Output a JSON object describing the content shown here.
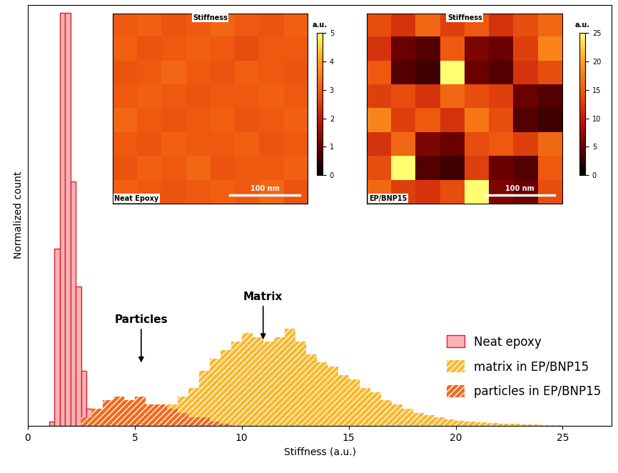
{
  "chart_data": [
    {
      "type": "histogram",
      "xlabel": "Stiffness (a.u.)",
      "ylabel": "Normalized count",
      "xlim": [
        0,
        27.3
      ],
      "xticks": [
        0,
        5,
        10,
        15,
        20,
        25
      ],
      "ylim": [
        0,
        1
      ],
      "yticks": [],
      "tick_labels": "x",
      "legend": "lower right",
      "series": [
        {
          "name": "Neat epoxy",
          "color": "#f7b3b6",
          "bins": [
            1.0,
            1.25,
            1.5,
            1.75,
            2.0,
            2.25,
            2.5,
            2.75,
            3.0
          ],
          "values": [
            0.01,
            0.42,
            0.98,
            0.98,
            0.58,
            0.33,
            0.13,
            0.04
          ]
        },
        {
          "name": "matrix in EP/BNP15",
          "color": "#fbb829",
          "bins": [
            5.0,
            5.5,
            6.0,
            6.5,
            7.0,
            7.5,
            8.0,
            8.5,
            9.0,
            9.5,
            10.0,
            10.5,
            11.0,
            11.5,
            12.0,
            12.5,
            13.0,
            13.5,
            14.0,
            14.5,
            15.0,
            15.5,
            16.0,
            16.5,
            17.0,
            17.5,
            18.0,
            18.5,
            19.0,
            19.5,
            20.0,
            20.5,
            21.0,
            21.5,
            22.0,
            22.5,
            23.0,
            23.5,
            24.0,
            24.5,
            25.0
          ],
          "values": [
            0.01,
            0.02,
            0.03,
            0.05,
            0.07,
            0.09,
            0.13,
            0.16,
            0.18,
            0.2,
            0.22,
            0.21,
            0.2,
            0.21,
            0.23,
            0.2,
            0.17,
            0.15,
            0.14,
            0.12,
            0.11,
            0.09,
            0.08,
            0.06,
            0.05,
            0.04,
            0.03,
            0.025,
            0.02,
            0.015,
            0.012,
            0.01,
            0.008,
            0.006,
            0.005,
            0.004,
            0.003,
            0.003,
            0.002,
            0.002
          ]
        },
        {
          "name": "particles in EP/BNP15",
          "color": "#f46a1e",
          "bins": [
            2.5,
            3.0,
            3.5,
            4.0,
            4.5,
            5.0,
            5.5,
            6.0,
            6.5,
            7.0,
            7.5,
            8.0,
            8.5,
            9.0,
            9.5
          ],
          "values": [
            0.02,
            0.04,
            0.06,
            0.07,
            0.06,
            0.07,
            0.05,
            0.05,
            0.04,
            0.03,
            0.02,
            0.02,
            0.01,
            0.005
          ]
        }
      ],
      "annotations": [
        {
          "text": "Particles",
          "x": 5.3,
          "y": 0.145
        },
        {
          "text": "Matrix",
          "x": 11,
          "y": 0.2
        }
      ]
    },
    {
      "type": "heatmap",
      "title": "Stiffness",
      "label": "Neat Epoxy",
      "scale_bar": "100 nm",
      "colorbar_label": "a.u.",
      "tick_labels": false,
      "colorbar_lim": [
        0,
        5
      ],
      "colorbar_ticks": [
        0,
        1,
        2,
        3,
        4,
        5
      ],
      "cells": [
        [
          3.0,
          3.1,
          2.9,
          3.0,
          3.2,
          3.0,
          2.9,
          3.1
        ],
        [
          3.1,
          2.9,
          3.0,
          3.1,
          3.0,
          2.8,
          3.0,
          3.0
        ],
        [
          2.9,
          3.0,
          3.2,
          3.0,
          2.9,
          3.1,
          3.0,
          2.9
        ],
        [
          3.0,
          3.1,
          3.0,
          2.9,
          3.0,
          3.0,
          3.1,
          3.0
        ],
        [
          3.2,
          3.0,
          2.9,
          3.0,
          3.1,
          2.9,
          3.0,
          3.1
        ],
        [
          3.0,
          2.9,
          3.1,
          3.0,
          3.0,
          3.1,
          2.9,
          3.0
        ],
        [
          2.9,
          3.1,
          3.0,
          3.2,
          2.9,
          3.0,
          3.0,
          3.1
        ],
        [
          3.1,
          3.0,
          2.9,
          3.0,
          3.1,
          3.0,
          3.2,
          2.9
        ]
      ]
    },
    {
      "type": "heatmap",
      "title": "Stiffness",
      "label": "EP/BNP15",
      "scale_bar": "100 nm",
      "colorbar_label": "a.u.",
      "tick_labels": false,
      "colorbar_lim": [
        0,
        25
      ],
      "colorbar_ticks": [
        0,
        5,
        10,
        15,
        20,
        25
      ],
      "cells": [
        [
          14,
          12,
          16,
          13,
          15,
          12,
          14,
          16
        ],
        [
          12,
          5,
          4,
          15,
          6,
          5,
          13,
          18
        ],
        [
          15,
          4,
          3,
          25,
          5,
          4,
          12,
          14
        ],
        [
          13,
          14,
          12,
          16,
          14,
          13,
          5,
          4
        ],
        [
          18,
          13,
          15,
          12,
          17,
          14,
          4,
          3
        ],
        [
          12,
          16,
          6,
          5,
          14,
          15,
          13,
          16
        ],
        [
          14,
          25,
          4,
          3,
          13,
          5,
          4,
          15
        ],
        [
          16,
          13,
          12,
          14,
          25,
          6,
          5,
          14
        ]
      ]
    }
  ]
}
